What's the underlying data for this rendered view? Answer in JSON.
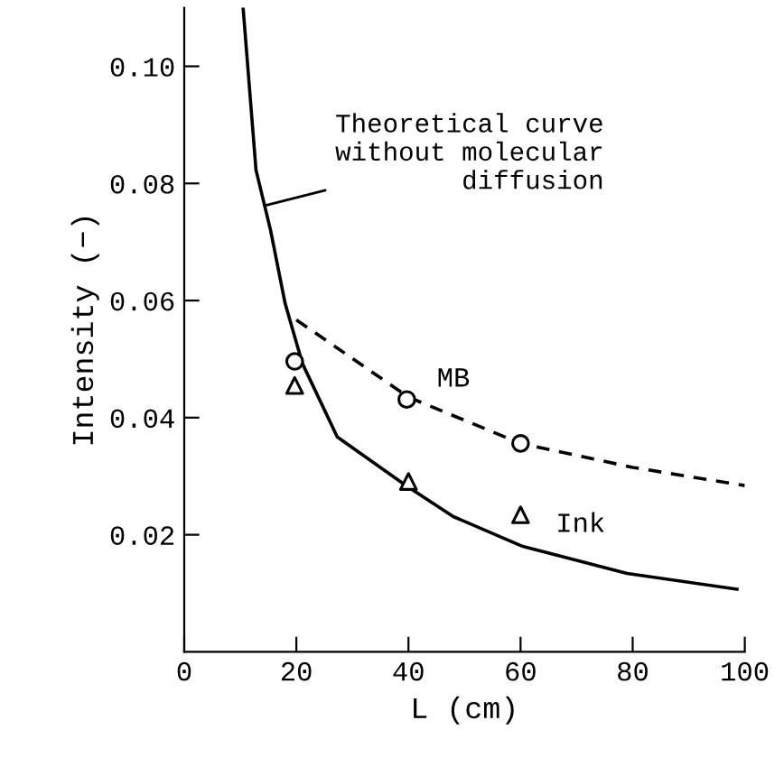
{
  "chart_data": {
    "type": "line",
    "xlabel": "L (cm)",
    "ylabel": "Intensity (−)",
    "xlim": [
      0,
      100
    ],
    "ylim": [
      0,
      0.11
    ],
    "xticks": [
      0,
      20,
      40,
      60,
      80,
      100
    ],
    "yticks": [
      0.02,
      0.04,
      0.06,
      0.08,
      {
        "value": 0.1,
        "label": "0.10"
      }
    ],
    "grid": false,
    "legend": false,
    "series": [
      {
        "color": "#000000",
        "marker": "none",
        "line_style": "solid",
        "x": [
          10.5,
          12.8,
          15.4,
          18,
          21.1,
          27.3,
          39.7,
          48,
          60.4,
          79,
          98.6
        ],
        "values": [
          0.11,
          0.0823,
          0.072,
          0.0595,
          0.0492,
          0.0367,
          0.0283,
          0.0231,
          0.018,
          0.0134,
          0.0107
        ]
      },
      {
        "color": "#000000",
        "marker": "none",
        "line_style": "dashed",
        "x": [
          20,
          40,
          60,
          80,
          100
        ],
        "values": [
          0.0567,
          0.0435,
          0.0356,
          0.0315,
          0.0284
        ]
      },
      {
        "type": "scatter",
        "name": "MB",
        "color": "#000000",
        "marker": "circle",
        "x": [
          19.7,
          39.7,
          60
        ],
        "values": [
          0.0496,
          0.0431,
          0.0356
        ]
      },
      {
        "type": "scatter",
        "name": "Ink",
        "color": "#000000",
        "marker": "triangle",
        "x": [
          19.7,
          40,
          60
        ],
        "values": [
          0.0455,
          0.0291,
          0.0234
        ]
      }
    ],
    "annotations": [
      {
        "text": "Theoretical curve\nwithout molecular\ndiffusion",
        "x": 13.5,
        "y": 0.076
      }
    ]
  }
}
